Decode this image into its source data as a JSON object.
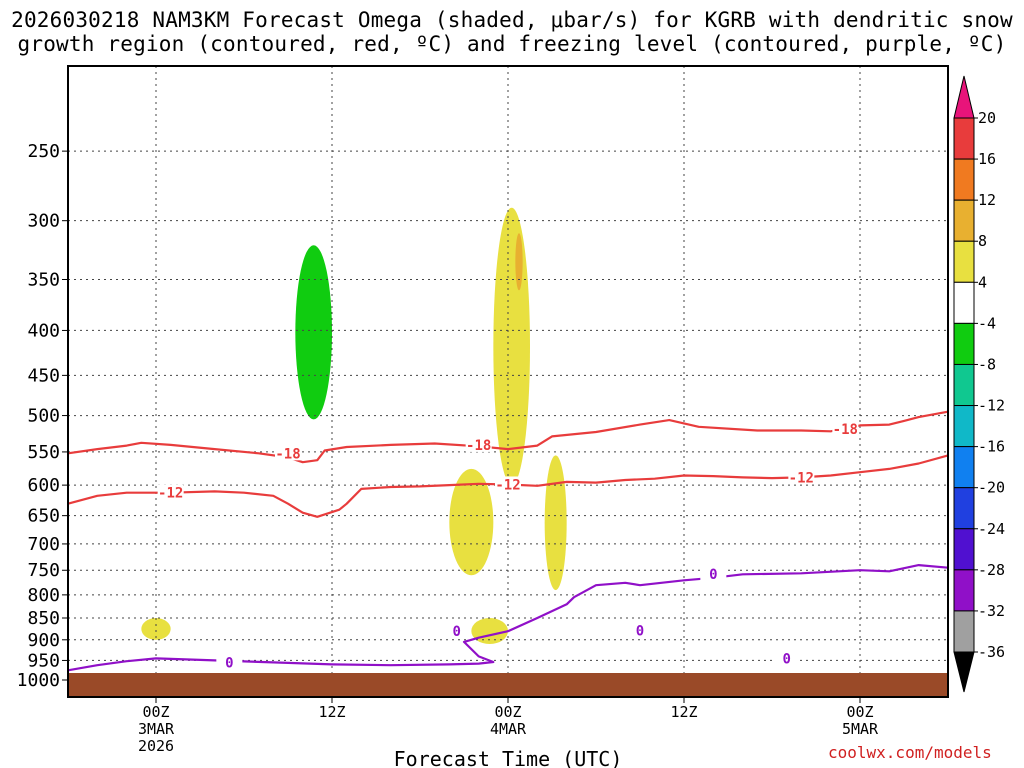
{
  "chart_data": {
    "type": "heatmap",
    "title_line1": "2026030218 NAM3KM Forecast Omega (shaded, μbar/s) for KGRB with dendritic snow",
    "title_line2": "growth region (contoured, red, ºC) and freezing level (contoured, purple, ºC)",
    "xlabel": "Forecast Time (UTC)",
    "ylabel": "",
    "y_ticks": [
      250,
      300,
      350,
      400,
      450,
      500,
      550,
      600,
      650,
      700,
      750,
      800,
      850,
      900,
      950,
      1000
    ],
    "y_range": [
      1000,
      200
    ],
    "x_range_hours": [
      -6,
      54
    ],
    "x_ticks": [
      {
        "hour": 0,
        "label": "00Z",
        "sub1": "3MAR",
        "sub2": "2026"
      },
      {
        "hour": 12,
        "label": "12Z",
        "sub1": "",
        "sub2": ""
      },
      {
        "hour": 24,
        "label": "00Z",
        "sub1": "4MAR",
        "sub2": ""
      },
      {
        "hour": 36,
        "label": "12Z",
        "sub1": "",
        "sub2": ""
      },
      {
        "hour": 48,
        "label": "00Z",
        "sub1": "5MAR",
        "sub2": ""
      }
    ],
    "colorbar": {
      "labels": [
        "20",
        "16",
        "12",
        "8",
        "4",
        "-4",
        "-8",
        "-12",
        "-16",
        "-20",
        "-24",
        "-28",
        "-32",
        "-36"
      ],
      "colors": [
        "#e8147a",
        "#e83c3c",
        "#f07a20",
        "#e8b030",
        "#e8e040",
        "#ffffff",
        "#10cc10",
        "#10c890",
        "#10b8c8",
        "#1080f0",
        "#2040e0",
        "#5010d0",
        "#9010c8",
        "#a0a0a0",
        "#000000"
      ]
    },
    "contour_labels": [
      {
        "value": "-18",
        "color": "#e83c3c"
      },
      {
        "value": "-12",
        "color": "#e83c3c"
      },
      {
        "value": "0",
        "color": "#9010c8"
      }
    ],
    "series": [
      {
        "name": "-18 C isotherm",
        "color": "#e83c3c",
        "points": [
          [
            -6,
            552
          ],
          [
            -4,
            546
          ],
          [
            -2,
            541
          ],
          [
            -1,
            537
          ],
          [
            1,
            540
          ],
          [
            4,
            546
          ],
          [
            7,
            552
          ],
          [
            9,
            558
          ],
          [
            10,
            565
          ],
          [
            11,
            562
          ],
          [
            11.5,
            548
          ],
          [
            13,
            543
          ],
          [
            16,
            540
          ],
          [
            19,
            538
          ],
          [
            22,
            542
          ],
          [
            24,
            546
          ],
          [
            26,
            541
          ],
          [
            27,
            528
          ],
          [
            30,
            522
          ],
          [
            33,
            512
          ],
          [
            35,
            506
          ],
          [
            37,
            515
          ],
          [
            41,
            520
          ],
          [
            44,
            520
          ],
          [
            46,
            521
          ],
          [
            48,
            513
          ],
          [
            50,
            512
          ],
          [
            51,
            507
          ],
          [
            52,
            502
          ],
          [
            54,
            495
          ]
        ]
      },
      {
        "name": "-12 C isotherm",
        "color": "#e83c3c",
        "points": [
          [
            -6,
            630
          ],
          [
            -4,
            617
          ],
          [
            -2,
            612
          ],
          [
            1,
            612
          ],
          [
            4,
            610
          ],
          [
            6,
            612
          ],
          [
            8,
            617
          ],
          [
            9,
            630
          ],
          [
            10,
            645
          ],
          [
            11,
            652
          ],
          [
            12.5,
            640
          ],
          [
            13,
            630
          ],
          [
            14,
            606
          ],
          [
            16,
            603
          ],
          [
            18,
            602
          ],
          [
            20,
            600
          ],
          [
            22,
            598
          ],
          [
            24,
            599
          ],
          [
            26,
            601
          ],
          [
            28,
            595
          ],
          [
            30,
            596
          ],
          [
            32,
            592
          ],
          [
            34,
            590
          ],
          [
            36,
            585
          ],
          [
            38,
            586
          ],
          [
            40,
            588
          ],
          [
            42,
            589
          ],
          [
            44,
            588
          ],
          [
            46,
            585
          ],
          [
            48,
            580
          ],
          [
            50,
            575
          ],
          [
            52,
            567
          ],
          [
            54,
            555
          ]
        ]
      },
      {
        "name": "0 C level",
        "color": "#9010c8",
        "points": [
          [
            -6,
            975
          ],
          [
            -4,
            962
          ],
          [
            -2,
            952
          ],
          [
            0,
            945
          ],
          [
            4,
            950
          ],
          [
            8,
            955
          ],
          [
            12,
            960
          ],
          [
            16,
            962
          ],
          [
            20,
            960
          ],
          [
            22,
            958
          ],
          [
            23,
            954
          ],
          [
            22,
            940
          ],
          [
            21,
            905
          ],
          [
            22,
            895
          ],
          [
            24,
            880
          ],
          [
            26,
            850
          ],
          [
            28,
            820
          ],
          [
            28.5,
            805
          ],
          [
            30,
            780
          ],
          [
            32,
            775
          ],
          [
            33,
            780
          ],
          [
            36,
            770
          ],
          [
            38,
            765
          ],
          [
            40,
            758
          ],
          [
            44,
            756
          ],
          [
            48,
            750
          ],
          [
            50,
            752
          ],
          [
            52,
            740
          ],
          [
            54,
            745
          ]
        ]
      }
    ],
    "shaded_regions": [
      {
        "omega": "-4 to -8",
        "color": "#10cc10",
        "hours": [
          9.5,
          12
        ],
        "pressure": [
          320,
          505
        ]
      },
      {
        "omega": "4 to 8",
        "color": "#e8e040",
        "hours": [
          23,
          25.5
        ],
        "pressure": [
          290,
          600
        ]
      },
      {
        "omega": "8 to 12",
        "color": "#e8b030",
        "hours": [
          24.5,
          25
        ],
        "pressure": [
          310,
          360
        ]
      },
      {
        "omega": "4 to 8",
        "color": "#e8e040",
        "hours": [
          20,
          23
        ],
        "pressure": [
          575,
          760
        ]
      },
      {
        "omega": "4 to 8",
        "color": "#e8e040",
        "hours": [
          26.5,
          28
        ],
        "pressure": [
          555,
          790
        ]
      },
      {
        "omega": "4 to 8",
        "color": "#e8e040",
        "hours": [
          -1,
          1
        ],
        "pressure": [
          850,
          900
        ]
      },
      {
        "omega": "4 to 8",
        "color": "#e8e040",
        "hours": [
          21.5,
          24
        ],
        "pressure": [
          850,
          910
        ]
      }
    ]
  },
  "credit": "coolwx.com/models"
}
